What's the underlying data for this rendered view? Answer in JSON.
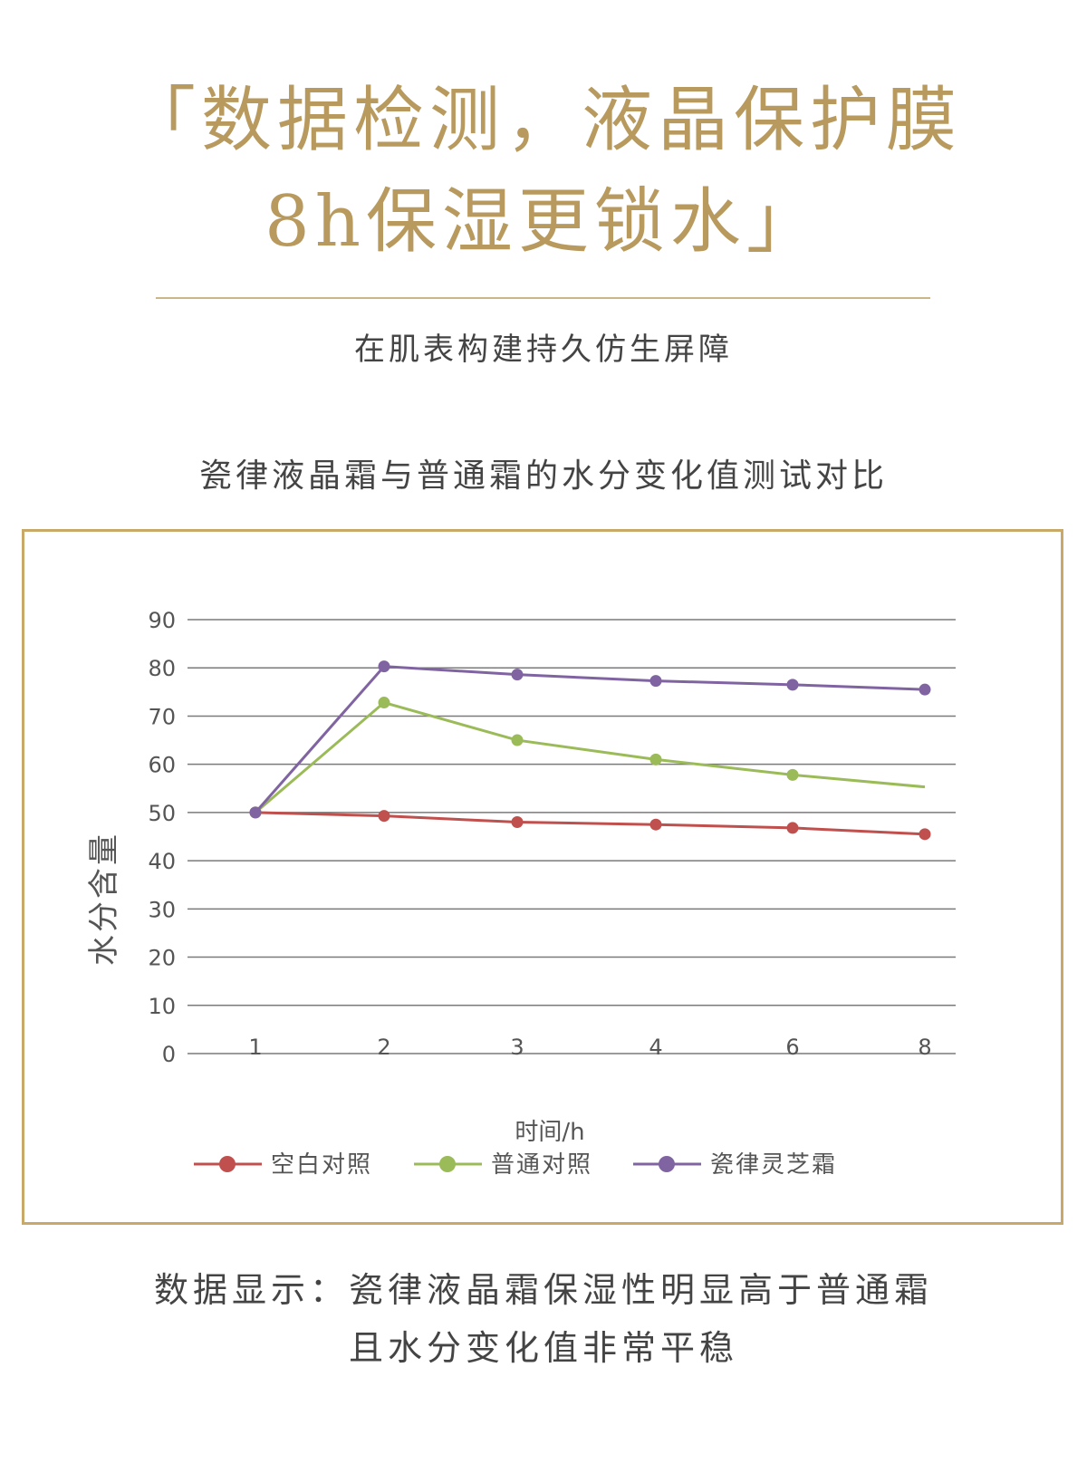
{
  "header": {
    "headline_line1": "「数据检测，液晶保护膜",
    "headline_line2": "8h保湿更锁水」",
    "subtitle": "在肌表构建持久仿生屏障"
  },
  "chart_title": "瓷律液晶霜与普通霜的水分变化值测试对比",
  "colors": {
    "accent_gold": "#b89a5f",
    "frame_border": "#c8a96a",
    "grid": "#7a7a7a"
  },
  "chart_data": {
    "type": "line",
    "categories": [
      "1",
      "2",
      "3",
      "4",
      "6",
      "8"
    ],
    "series": [
      {
        "name": "空白对照",
        "color": "#c0504d",
        "values": [
          50,
          49.3,
          48,
          47.5,
          46.8,
          45.5
        ]
      },
      {
        "name": "普通对照",
        "color": "#9bbb59",
        "values": [
          50,
          72.8,
          65,
          61,
          57.8,
          55.3
        ]
      },
      {
        "name": "瓷律灵芝霜",
        "color": "#8064a2",
        "values": [
          50,
          80.3,
          78.6,
          77.3,
          76.5,
          75.5
        ]
      }
    ],
    "xlabel": "时间/h",
    "ylabel": "水分含量",
    "ylim": [
      0,
      90
    ],
    "yticks": [
      "0",
      "10",
      "20",
      "30",
      "40",
      "50",
      "60",
      "70",
      "80",
      "90"
    ],
    "grid": true,
    "legend_position": "bottom"
  },
  "footer": {
    "line1": "数据显示：瓷律液晶霜保湿性明显高于普通霜",
    "line2": "且水分变化值非常平稳"
  }
}
